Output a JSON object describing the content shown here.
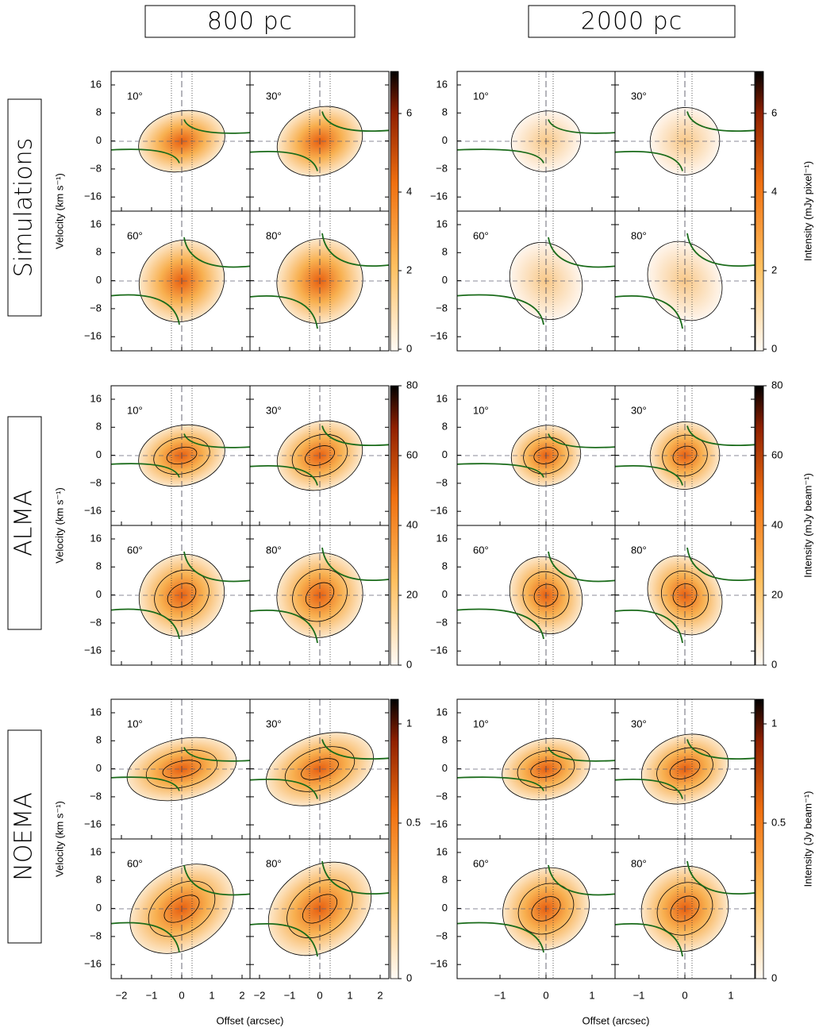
{
  "columns": [
    "800 pc",
    "2000 pc"
  ],
  "rows": [
    {
      "label": "Simulations",
      "colorbar_label": "Intensity (mJy pixel⁻¹)",
      "colorbar_ticks": [
        "0",
        "2",
        "4",
        "6"
      ]
    },
    {
      "label": "ALMA",
      "colorbar_label": "Intensity (mJy beam⁻¹)",
      "colorbar_ticks": [
        "0",
        "20",
        "40",
        "60",
        "80"
      ]
    },
    {
      "label": "NOEMA",
      "colorbar_label": "Intensity (Jy beam⁻¹)",
      "colorbar_ticks": [
        "0",
        "0.5",
        "1"
      ]
    }
  ],
  "panel_labels": [
    "10°",
    "30°",
    "60°",
    "80°"
  ],
  "y_axis_label": "Velocity (km s⁻¹)",
  "y_ticks": [
    "16",
    "8",
    "0",
    "−8",
    "−16"
  ],
  "x_axis_label": "Offset (arcsec)",
  "x_ticks_800": [
    "2",
    "1",
    "0",
    "−1",
    "−2"
  ],
  "x_ticks_2000": [
    "1",
    "0",
    "−1"
  ]
}
